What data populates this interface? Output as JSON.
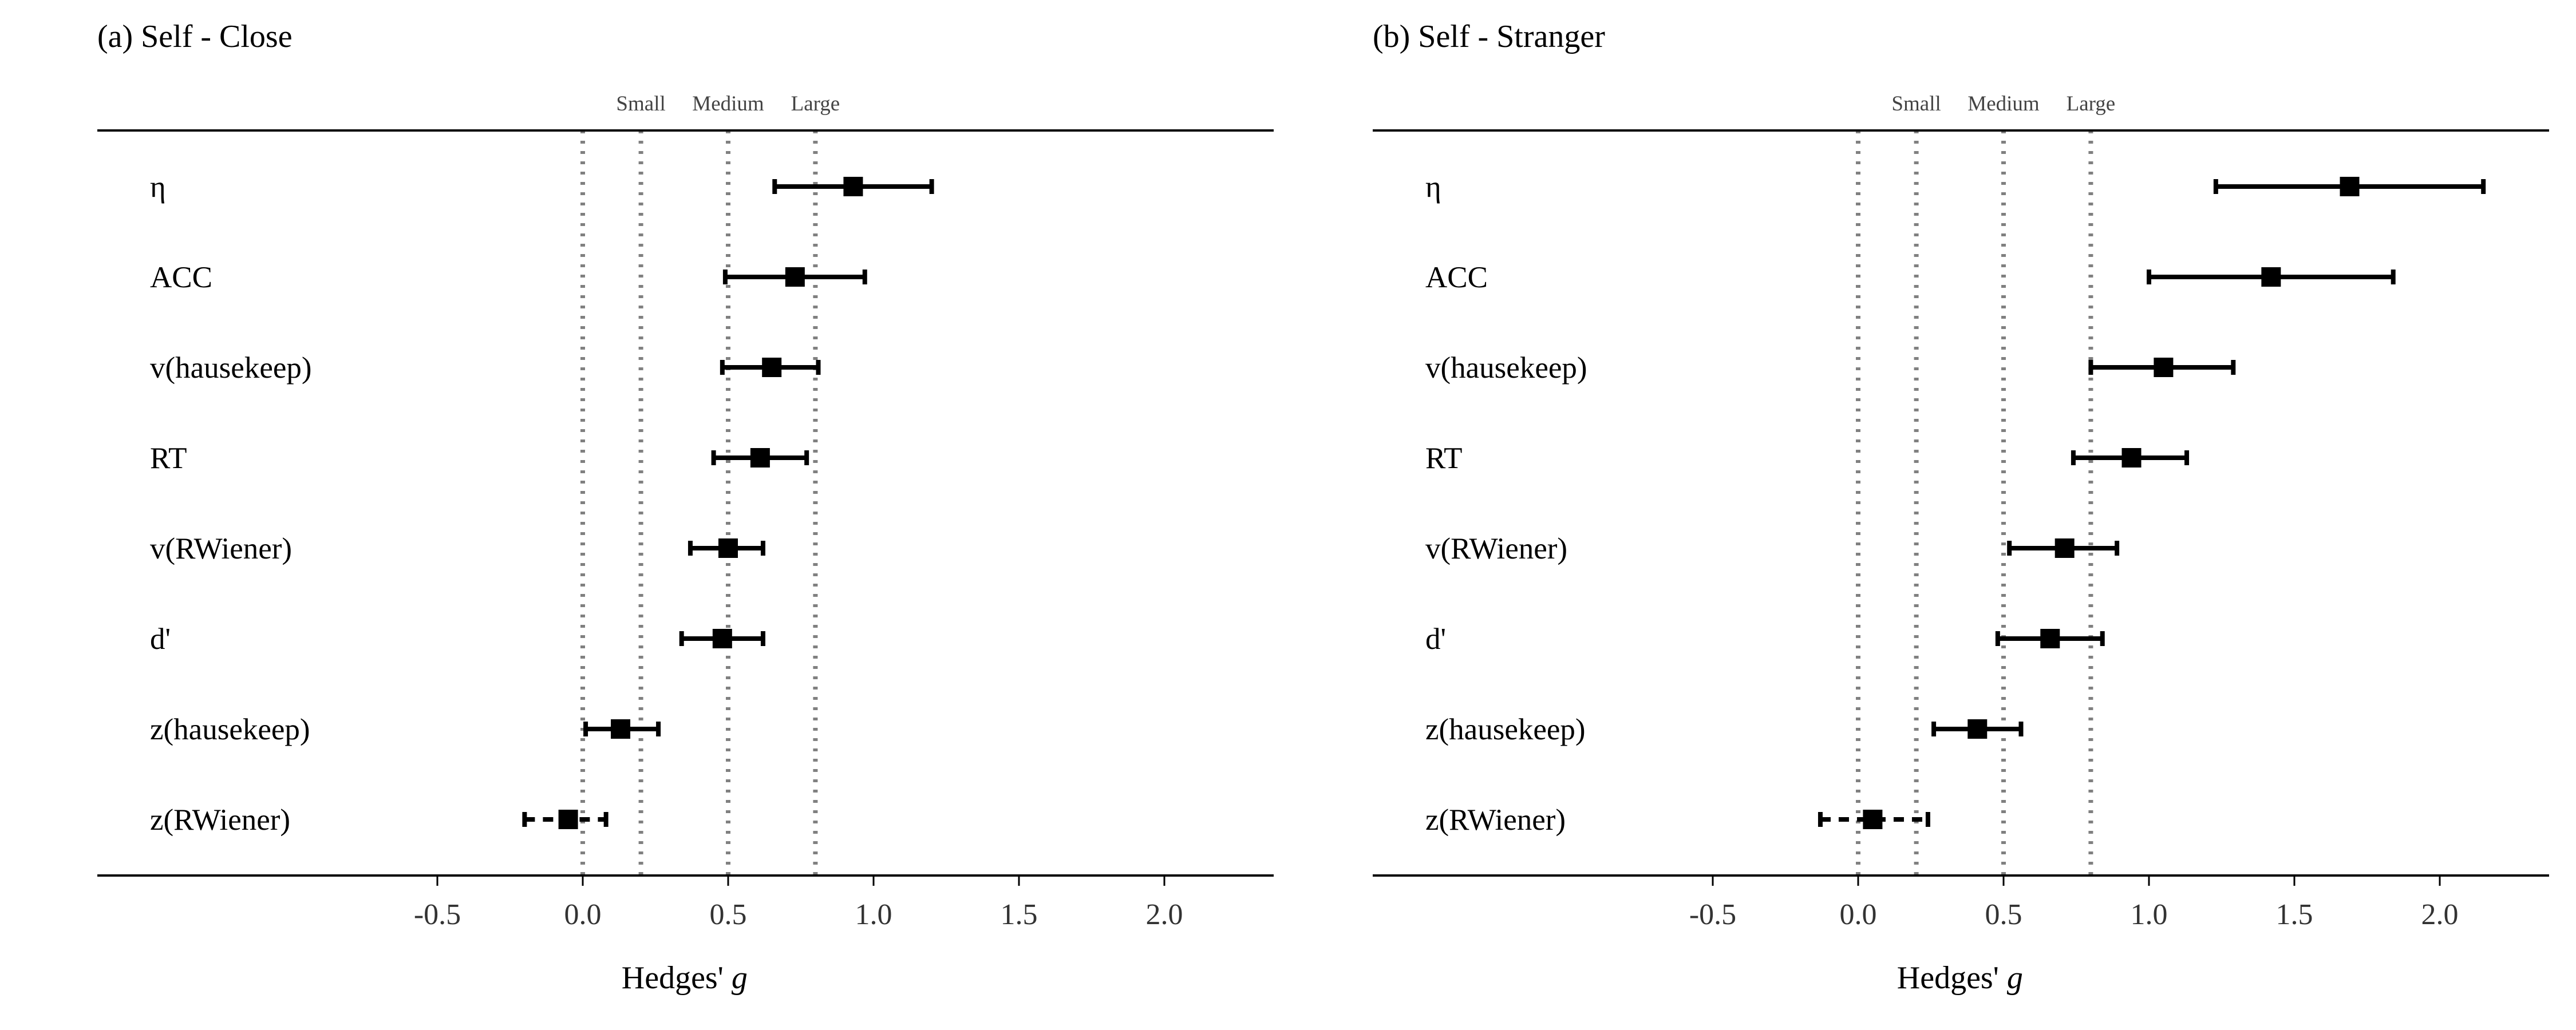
{
  "colors": {
    "axis": "#000000",
    "reference_lines": "#808080",
    "marker": "#000000"
  },
  "chart_data": [
    {
      "type": "forest",
      "title": "(a) Self - Close",
      "xlabel": {
        "text": "Hedges' ",
        "italic": "g"
      },
      "xlim": [
        -0.55,
        2.4
      ],
      "xticks": [
        -0.5,
        0.0,
        0.5,
        1.0,
        1.5,
        2.0
      ],
      "xtick_labels": [
        "-0.5",
        "0.0",
        "0.5",
        "1.0",
        "1.5",
        "2.0"
      ],
      "grid": false,
      "reference_lines": [
        {
          "value": 0.0,
          "label": ""
        },
        {
          "value": 0.2,
          "label": "Small"
        },
        {
          "value": 0.5,
          "label": "Medium"
        },
        {
          "value": 0.8,
          "label": "Large"
        }
      ],
      "rows": [
        {
          "label": "η",
          "estimate": 0.93,
          "lower": 0.66,
          "upper": 1.2,
          "dashed": false
        },
        {
          "label": "ACC",
          "estimate": 0.73,
          "lower": 0.49,
          "upper": 0.97,
          "dashed": false
        },
        {
          "label": "v(hausekeep)",
          "estimate": 0.65,
          "lower": 0.48,
          "upper": 0.81,
          "dashed": false
        },
        {
          "label": "RT",
          "estimate": 0.61,
          "lower": 0.45,
          "upper": 0.77,
          "dashed": false
        },
        {
          "label": "v(RWiener)",
          "estimate": 0.5,
          "lower": 0.37,
          "upper": 0.62,
          "dashed": false
        },
        {
          "label": "d'",
          "estimate": 0.48,
          "lower": 0.34,
          "upper": 0.62,
          "dashed": false
        },
        {
          "label": "z(hausekeep)",
          "estimate": 0.13,
          "lower": 0.01,
          "upper": 0.26,
          "dashed": false
        },
        {
          "label": "z(RWiener)",
          "estimate": -0.05,
          "lower": -0.2,
          "upper": 0.08,
          "dashed": true
        }
      ]
    },
    {
      "type": "forest",
      "title": "(b) Self - Stranger",
      "xlabel": {
        "text": "Hedges' ",
        "italic": "g"
      },
      "xlim": [
        -0.55,
        2.4
      ],
      "xticks": [
        -0.5,
        0.0,
        0.5,
        1.0,
        1.5,
        2.0
      ],
      "xtick_labels": [
        "-0.5",
        "0.0",
        "0.5",
        "1.0",
        "1.5",
        "2.0"
      ],
      "grid": false,
      "reference_lines": [
        {
          "value": 0.0,
          "label": ""
        },
        {
          "value": 0.2,
          "label": "Small"
        },
        {
          "value": 0.5,
          "label": "Medium"
        },
        {
          "value": 0.8,
          "label": "Large"
        }
      ],
      "rows": [
        {
          "label": "η",
          "estimate": 1.69,
          "lower": 1.23,
          "upper": 2.15,
          "dashed": false
        },
        {
          "label": "ACC",
          "estimate": 1.42,
          "lower": 1.0,
          "upper": 1.84,
          "dashed": false
        },
        {
          "label": "v(hausekeep)",
          "estimate": 1.05,
          "lower": 0.8,
          "upper": 1.29,
          "dashed": false
        },
        {
          "label": "RT",
          "estimate": 0.94,
          "lower": 0.74,
          "upper": 1.13,
          "dashed": false
        },
        {
          "label": "v(RWiener)",
          "estimate": 0.71,
          "lower": 0.52,
          "upper": 0.89,
          "dashed": false
        },
        {
          "label": "d'",
          "estimate": 0.66,
          "lower": 0.48,
          "upper": 0.84,
          "dashed": false
        },
        {
          "label": "z(hausekeep)",
          "estimate": 0.41,
          "lower": 0.26,
          "upper": 0.56,
          "dashed": false
        },
        {
          "label": "z(RWiener)",
          "estimate": 0.05,
          "lower": -0.13,
          "upper": 0.24,
          "dashed": true
        }
      ]
    }
  ]
}
